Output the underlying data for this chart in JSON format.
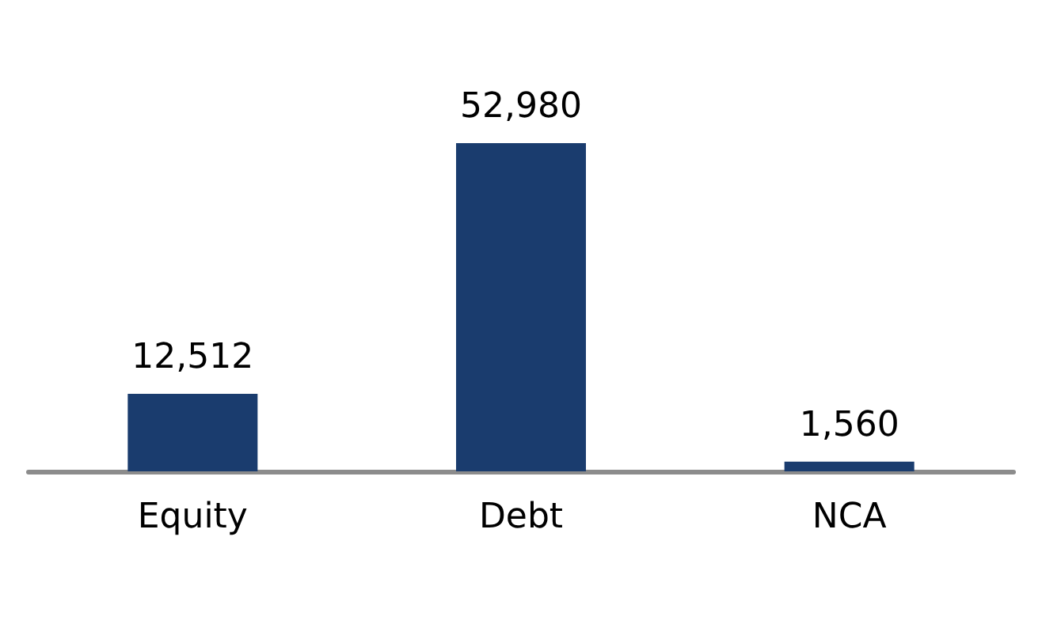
{
  "chart_data": {
    "type": "bar",
    "categories": [
      "Equity",
      "Debt",
      "NCA"
    ],
    "values": [
      12512,
      52980,
      1560
    ],
    "value_labels": [
      "12,512",
      "52,980",
      "1,560"
    ],
    "color": "#1a3c6e"
  }
}
